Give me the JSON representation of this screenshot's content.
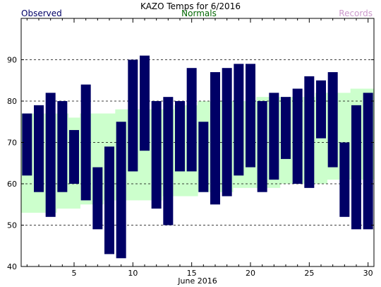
{
  "chart_data": {
    "type": "bar",
    "title": "KAZO Temps for 6/2016",
    "xlabel": "June 2016",
    "ylabel": "",
    "legend": {
      "observed": "Observed",
      "normals": "Normals",
      "records": "Records"
    },
    "colors": {
      "observed": "#000066",
      "normals": "#006600",
      "normals_fill": "#ccffcc",
      "records": "#cc99cc",
      "grid": "#000000",
      "background": "#ffffff"
    },
    "ylim": [
      40,
      100
    ],
    "yticks": [
      40,
      50,
      60,
      70,
      80,
      90
    ],
    "xlim": [
      0.5,
      30.5
    ],
    "xticks": [
      5,
      10,
      15,
      20,
      25,
      30
    ],
    "grid": "horizontal-dashed",
    "days": [
      1,
      2,
      3,
      4,
      5,
      6,
      7,
      8,
      9,
      10,
      11,
      12,
      13,
      14,
      15,
      16,
      17,
      18,
      19,
      20,
      21,
      22,
      23,
      24,
      25,
      26,
      27,
      28,
      29,
      30
    ],
    "series": [
      {
        "name": "Observed",
        "high": [
          77,
          79,
          82,
          80,
          73,
          84,
          64,
          69,
          75,
          90,
          91,
          80,
          81,
          80,
          88,
          75,
          87,
          88,
          89,
          89,
          80,
          82,
          81,
          83,
          86,
          85,
          87,
          70,
          79,
          82
        ],
        "low": [
          62,
          58,
          52,
          58,
          60,
          56,
          49,
          43,
          42,
          63,
          68,
          54,
          50,
          63,
          63,
          58,
          55,
          57,
          62,
          64,
          58,
          61,
          66,
          60,
          59,
          71,
          64,
          52,
          49,
          49
        ]
      },
      {
        "name": "Normals",
        "high": [
          77,
          77,
          77,
          77,
          76,
          77,
          77,
          77,
          78,
          78,
          78,
          78,
          78,
          79,
          79,
          80,
          80,
          80,
          80,
          80,
          81,
          81,
          81,
          81,
          81,
          82,
          82,
          82,
          83,
          83
        ],
        "low": [
          53,
          53,
          53,
          54,
          54,
          55,
          55,
          56,
          56,
          56,
          56,
          56,
          57,
          57,
          57,
          58,
          58,
          58,
          59,
          59,
          59,
          59,
          60,
          60,
          60,
          60,
          61,
          61,
          61,
          61
        ]
      }
    ]
  }
}
